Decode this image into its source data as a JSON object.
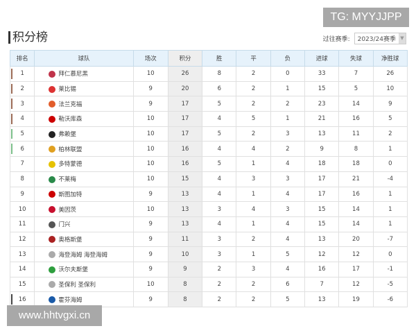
{
  "watermark_top": "TG: MYYJJPP",
  "watermark_bottom": "www.hhtvgxi.cn",
  "title": "积分榜",
  "season_label": "过往赛季:",
  "season_value": "2023/24赛季",
  "headers": [
    "排名",
    "球队",
    "场次",
    "积分",
    "胜",
    "平",
    "负",
    "进球",
    "失球",
    "净胜球"
  ],
  "rows": [
    [
      "1",
      "拜仁慕尼黑",
      "10",
      "26",
      "8",
      "2",
      "0",
      "33",
      "7",
      "26"
    ],
    [
      "2",
      "莱比锡",
      "9",
      "20",
      "6",
      "2",
      "1",
      "15",
      "5",
      "10"
    ],
    [
      "3",
      "法兰克福",
      "9",
      "17",
      "5",
      "2",
      "2",
      "23",
      "14",
      "9"
    ],
    [
      "4",
      "勒沃库森",
      "10",
      "17",
      "4",
      "5",
      "1",
      "21",
      "16",
      "5"
    ],
    [
      "5",
      "弗赖堡",
      "10",
      "17",
      "5",
      "2",
      "3",
      "13",
      "11",
      "2"
    ],
    [
      "6",
      "柏林联盟",
      "10",
      "16",
      "4",
      "4",
      "2",
      "9",
      "8",
      "1"
    ],
    [
      "7",
      "多特蒙德",
      "10",
      "16",
      "5",
      "1",
      "4",
      "18",
      "18",
      "0"
    ],
    [
      "8",
      "不莱梅",
      "10",
      "15",
      "4",
      "3",
      "3",
      "17",
      "21",
      "-4"
    ],
    [
      "9",
      "斯图加特",
      "9",
      "13",
      "4",
      "1",
      "4",
      "17",
      "16",
      "1"
    ],
    [
      "10",
      "美因茨",
      "10",
      "13",
      "3",
      "4",
      "3",
      "15",
      "14",
      "1"
    ],
    [
      "11",
      "门兴",
      "9",
      "13",
      "4",
      "1",
      "4",
      "15",
      "14",
      "1"
    ],
    [
      "12",
      "奥格斯堡",
      "9",
      "11",
      "3",
      "2",
      "4",
      "13",
      "20",
      "-7"
    ],
    [
      "13",
      "海登海姆 海登海姆",
      "9",
      "10",
      "3",
      "1",
      "5",
      "12",
      "12",
      "0"
    ],
    [
      "14",
      "沃尔夫斯堡",
      "9",
      "9",
      "2",
      "3",
      "4",
      "16",
      "17",
      "-1"
    ],
    [
      "15",
      "圣保利 圣保利",
      "10",
      "8",
      "2",
      "2",
      "6",
      "7",
      "12",
      "-5"
    ],
    [
      "16",
      "霍芬海姆",
      "9",
      "8",
      "2",
      "2",
      "5",
      "13",
      "19",
      "-6"
    ]
  ],
  "zone_colors": {
    "ucl": "#9b6a55",
    "uel": "#7cbf8a",
    "relegation_playoff": "#444444"
  },
  "logo_colors": [
    "#c0334a",
    "#d33",
    "#e25d2b",
    "#c00",
    "#222",
    "#e0a020",
    "#e6c200",
    "#2a8a4a",
    "#c00",
    "#c8102e",
    "#555",
    "#a22",
    "#aaa",
    "#2e9e3e",
    "#aaa",
    "#1a5aa8"
  ]
}
